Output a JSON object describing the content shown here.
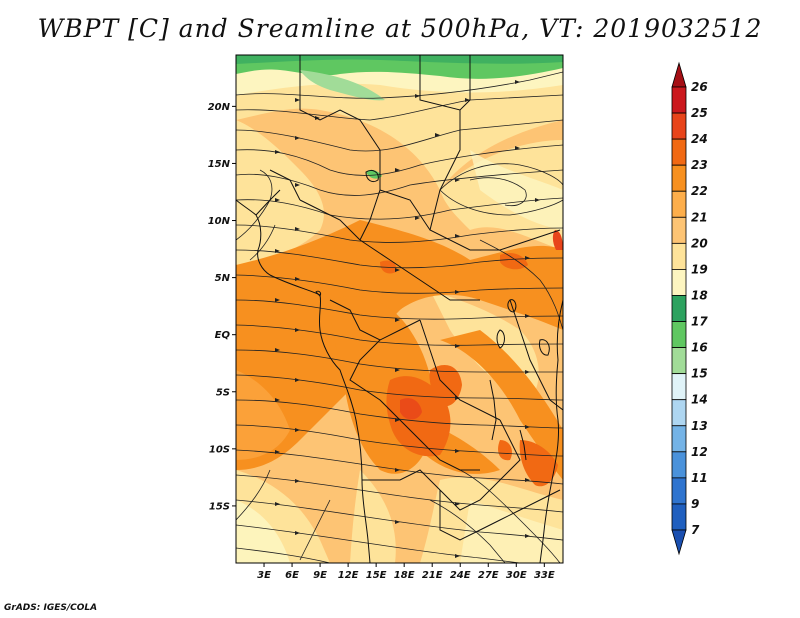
{
  "title": "WBPT [C] and Sreamline at 500hPa, VT: 2019032512",
  "credit": "GrADS: IGES/COLA",
  "map": {
    "lat_labels": [
      {
        "text": "20N",
        "lat": 20
      },
      {
        "text": "15N",
        "lat": 15
      },
      {
        "text": "10N",
        "lat": 10
      },
      {
        "text": "5N",
        "lat": 5
      },
      {
        "text": "EQ",
        "lat": 0
      },
      {
        "text": "5S",
        "lat": -5
      },
      {
        "text": "10S",
        "lat": -10
      },
      {
        "text": "15S",
        "lat": -15
      }
    ],
    "lon_labels": [
      {
        "text": "3E",
        "lon": 3
      },
      {
        "text": "6E",
        "lon": 6
      },
      {
        "text": "9E",
        "lon": 9
      },
      {
        "text": "12E",
        "lon": 12
      },
      {
        "text": "15E",
        "lon": 15
      },
      {
        "text": "18E",
        "lon": 18
      },
      {
        "text": "21E",
        "lon": 21
      },
      {
        "text": "24E",
        "lon": 24
      },
      {
        "text": "27E",
        "lon": 27
      },
      {
        "text": "30E",
        "lon": 30
      },
      {
        "text": "33E",
        "lon": 33
      }
    ],
    "lat_range": [
      -20,
      24.5
    ],
    "lon_range": [
      0,
      35
    ]
  },
  "colorbar": {
    "labels": [
      "26",
      "25",
      "24",
      "23",
      "22",
      "21",
      "20",
      "19",
      "18",
      "17",
      "16",
      "15",
      "14",
      "13",
      "12",
      "11",
      "9",
      "7"
    ],
    "colors": [
      "#a50f15",
      "#cb181d",
      "#e8441a",
      "#f16913",
      "#f7901f",
      "#fdae4b",
      "#fdc474",
      "#fee39a",
      "#fdf5c0",
      "#2ca25f",
      "#5fc761",
      "#a1dc98",
      "#e0f3f8",
      "#aed6f1",
      "#74b3e6",
      "#4a92db",
      "#2f74cf",
      "#1f5fbf",
      "#1a4fb0"
    ]
  }
}
